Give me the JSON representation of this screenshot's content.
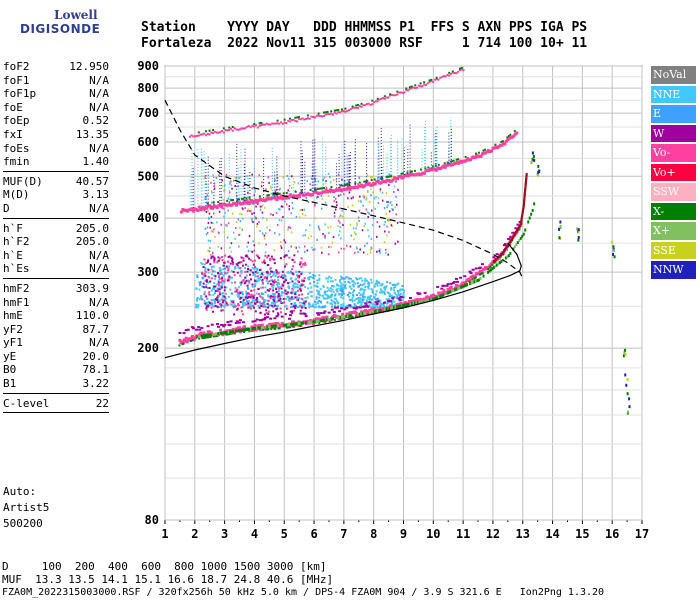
{
  "logo": {
    "line1": "Lowell",
    "line2": "DIGISONDE"
  },
  "header": {
    "line1": "Station    YYYY DAY   DDD HHMMSS P1  FFS S AXN PPS IGA PS",
    "line2": "Fortaleza  2022 Nov11 315 003000 RSF     1 714 100 10+ 11"
  },
  "params": [
    [
      [
        "foF2",
        "12.950"
      ],
      [
        "foF1",
        "N/A"
      ],
      [
        "foF1p",
        "N/A"
      ],
      [
        "foE",
        "N/A"
      ],
      [
        "foEp",
        "0.52"
      ],
      [
        "fxI",
        "13.35"
      ],
      [
        "foEs",
        "N/A"
      ],
      [
        "fmin",
        "1.40"
      ]
    ],
    [
      [
        "MUF(D)",
        "40.57"
      ],
      [
        "M(D)",
        "3.13"
      ],
      [
        "D",
        "N/A"
      ]
    ],
    [
      [
        "h`F",
        "205.0"
      ],
      [
        "h`F2",
        "205.0"
      ],
      [
        "h`E",
        "N/A"
      ],
      [
        "h`Es",
        "N/A"
      ]
    ],
    [
      [
        "hmF2",
        "303.9"
      ],
      [
        "hmF1",
        "N/A"
      ],
      [
        "hmE",
        "110.0"
      ],
      [
        "yF2",
        "87.7"
      ],
      [
        "yF1",
        "N/A"
      ],
      [
        "yE",
        "20.0"
      ],
      [
        "B0",
        "78.1"
      ],
      [
        "B1",
        "3.22"
      ]
    ],
    [
      [
        "C-level",
        "22"
      ]
    ]
  ],
  "auto": {
    "line1": "Auto:",
    "line2": "Artist5",
    "line3": "500200"
  },
  "legend": [
    {
      "label": "NoVal",
      "color": "#808080"
    },
    {
      "label": "NNE",
      "color": "#40c8ff"
    },
    {
      "label": "E",
      "color": "#40a0ff"
    },
    {
      "label": "W",
      "color": "#a000a0"
    },
    {
      "label": "Vo-",
      "color": "#ff40a0"
    },
    {
      "label": "Vo+",
      "color": "#ff0040"
    },
    {
      "label": "SSW",
      "color": "#ffb0c0"
    },
    {
      "label": "X-",
      "color": "#008000"
    },
    {
      "label": "X+",
      "color": "#80c060"
    },
    {
      "label": "SSE",
      "color": "#c8d020"
    },
    {
      "label": "NNW",
      "color": "#2020c0"
    }
  ],
  "footer": {
    "line1": "D     100  200  400  600  800 1000 1500 3000 [km]",
    "line2": "MUF  13.3 13.5 14.1 15.1 16.6 18.7 24.8 40.6 [MHz]",
    "line3": "FZA0M_2022315003000.RSF / 320fx256h 50 kHz 5.0 km / DPS-4 FZA0M 904 / 3.9 S 321.6 E   Ion2Png 1.3.20"
  },
  "chart_data": {
    "type": "scatter",
    "xlim": [
      1,
      17
    ],
    "ylim": [
      80,
      900
    ],
    "x_ticks": [
      1,
      2,
      3,
      4,
      5,
      6,
      7,
      8,
      9,
      10,
      11,
      12,
      13,
      14,
      15,
      16,
      17
    ],
    "y_ticks": [
      80,
      200,
      300,
      400,
      500,
      600,
      700,
      800,
      900
    ],
    "y_scale": "log",
    "grid": true,
    "legend_position": "right",
    "traces": {
      "o_trace": {
        "x": [
          1.45,
          2.0,
          3.0,
          4.0,
          5.0,
          6.0,
          7.0,
          8.0,
          9.0,
          10.0,
          11.0,
          11.8,
          12.3,
          12.6,
          12.9,
          13.0,
          13.1
        ],
        "y": [
          208,
          215,
          220,
          225,
          228,
          233,
          240,
          246,
          254,
          265,
          285,
          310,
          335,
          360,
          390,
          430,
          510
        ]
      },
      "x_trace": {
        "x": [
          2.0,
          4.0,
          6.0,
          8.0,
          10.0,
          11.5,
          12.5,
          13.0,
          13.3,
          13.5
        ],
        "y": [
          214,
          224,
          232,
          245,
          262,
          290,
          330,
          370,
          420,
          480
        ]
      },
      "o_2hop": {
        "x": [
          1.5,
          2.5,
          3.5,
          4.5,
          5.5,
          6.5,
          7.5,
          8.5,
          9.5,
          10.5,
          11.5,
          12.3,
          12.8
        ],
        "y": [
          418,
          428,
          437,
          447,
          456,
          466,
          478,
          494,
          512,
          534,
          562,
          598,
          640
        ]
      },
      "o_3hop": {
        "x": [
          1.8,
          3.0,
          4.0,
          5.0,
          6.0,
          7.0,
          8.0,
          9.0,
          10.0,
          11.0
        ],
        "y": [
          620,
          640,
          655,
          670,
          690,
          710,
          745,
          790,
          835,
          890
        ]
      },
      "profile": {
        "x": [
          1.0,
          2.0,
          3.0,
          4.0,
          5.0,
          6.0,
          7.0,
          8.0,
          9.0,
          10.0,
          11.0,
          12.0,
          12.6,
          12.9,
          12.95,
          12.8,
          12.5
        ],
        "y": [
          190,
          198,
          205,
          212,
          218,
          225,
          232,
          240,
          248,
          258,
          270,
          285,
          295,
          302,
          310,
          330,
          350
        ]
      },
      "dashed_muf": {
        "x": [
          1.0,
          1.5,
          2.0,
          3.0,
          4.0,
          5.0,
          6.0,
          7.0,
          8.0,
          9.0,
          10.0,
          11.0,
          12.0,
          12.5,
          12.9,
          13.0
        ],
        "y": [
          750,
          640,
          560,
          500,
          470,
          450,
          435,
          420,
          405,
          390,
          375,
          355,
          330,
          315,
          300,
          290
        ]
      },
      "spread_e_region": {
        "x_range": [
          2.0,
          9.0
        ],
        "y_range": [
          250,
          320
        ]
      },
      "sporadic_x": [
        13.3,
        13.5,
        14.2,
        14.8,
        16.0,
        16.4,
        16.5
      ],
      "sporadic_y": [
        560,
        520,
        380,
        370,
        340,
        180,
        160
      ]
    }
  }
}
